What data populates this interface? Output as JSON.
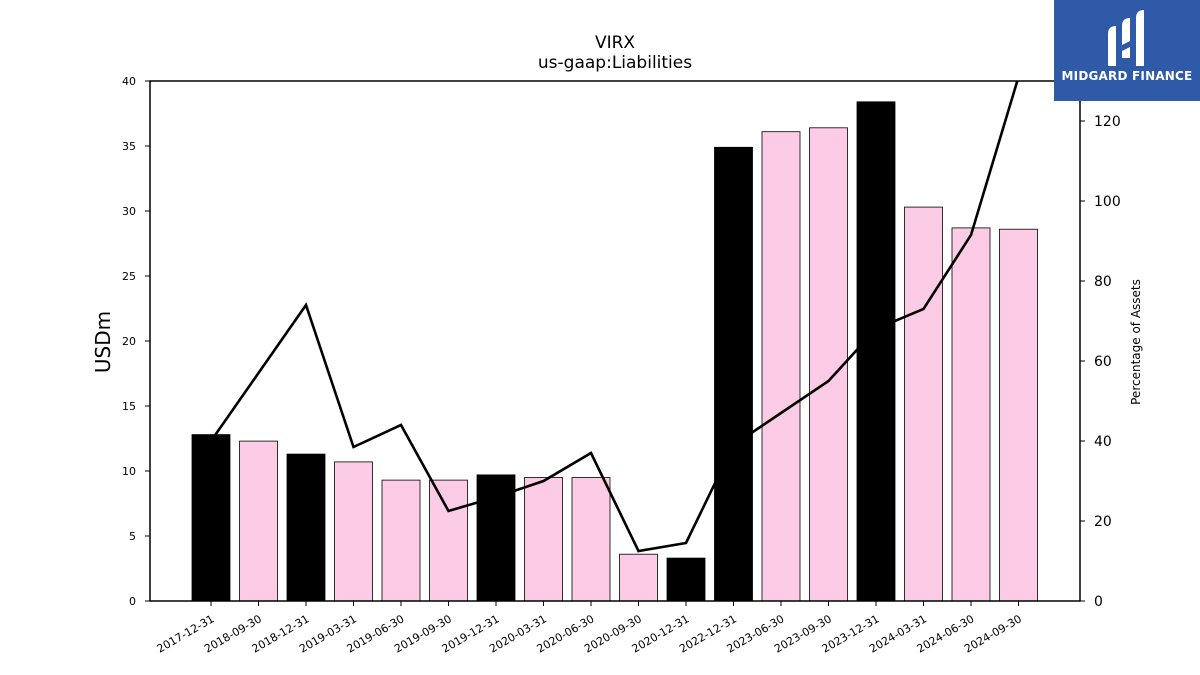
{
  "brand": {
    "name": "MIDGARD FINANCE"
  },
  "colors": {
    "bar_year_end": "#000000",
    "bar_quarter": "#fccbe5",
    "line": "#000000",
    "logo_bg": "#2e5aa8"
  },
  "chart_data": {
    "type": "bar",
    "title": "VIRX",
    "subtitle": "us-gaap:Liabilities",
    "ylabel": "USDm",
    "ylabel_right": "Percentage of Assets",
    "ylim": [
      0,
      40
    ],
    "ylim_right": [
      0,
      130
    ],
    "yticks": [
      0,
      5,
      10,
      15,
      20,
      25,
      30,
      35,
      40
    ],
    "yticks_right": [
      0,
      20,
      40,
      60,
      80,
      100,
      120
    ],
    "categories": [
      "2017-12-31",
      "2018-09-30",
      "2018-12-31",
      "2019-03-31",
      "2019-06-30",
      "2019-09-30",
      "2019-12-31",
      "2020-03-31",
      "2020-06-30",
      "2020-09-30",
      "2020-12-31",
      "2022-12-31",
      "2023-06-30",
      "2023-09-30",
      "2023-12-31",
      "2024-03-31",
      "2024-06-30",
      "2024-09-30"
    ],
    "series": [
      {
        "type": "bar",
        "axis": "left",
        "values": [
          12.8,
          12.3,
          11.3,
          10.7,
          9.3,
          9.3,
          9.7,
          9.5,
          9.5,
          3.6,
          3.3,
          34.9,
          36.1,
          36.4,
          38.4,
          30.3,
          28.7,
          28.6
        ],
        "year_end": [
          true,
          false,
          true,
          false,
          false,
          false,
          true,
          false,
          false,
          false,
          true,
          true,
          false,
          false,
          true,
          false,
          false,
          false
        ]
      },
      {
        "type": "line",
        "axis": "right",
        "values": [
          40,
          57,
          74,
          38.5,
          44,
          22.5,
          26,
          30,
          37,
          12.5,
          14.5,
          39,
          47,
          55,
          68,
          73,
          91.5,
          131
        ]
      }
    ]
  }
}
